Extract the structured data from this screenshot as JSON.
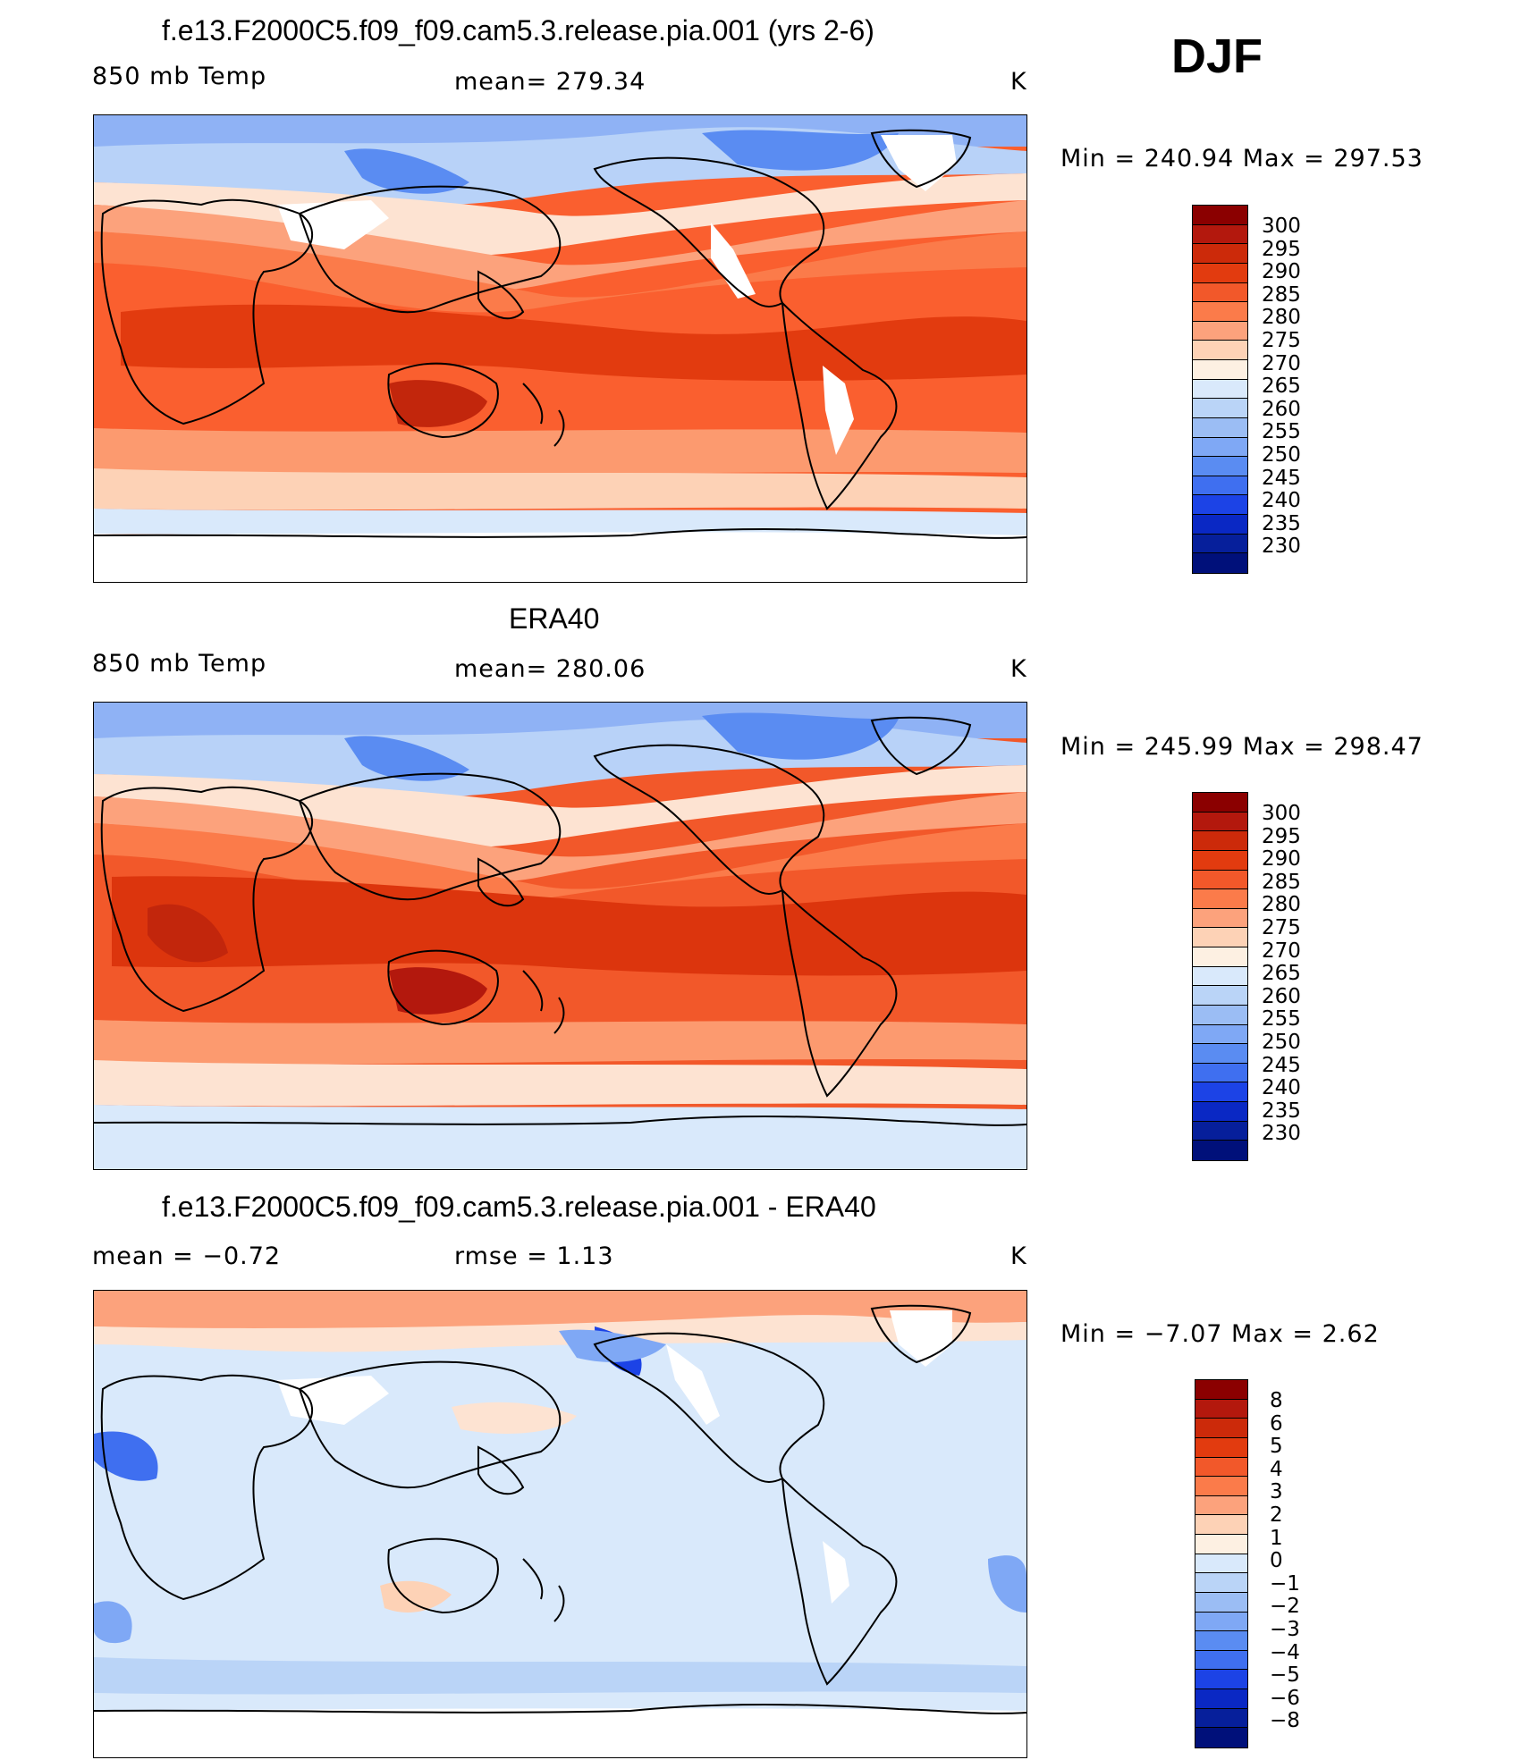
{
  "season": "DJF",
  "panels": [
    {
      "title": "f.e13.F2000C5.f09_f09.cam5.3.release.pia.001 (yrs 2-6)",
      "left_label": "850 mb Temp",
      "mid_label": "mean=  279.34",
      "units": "K",
      "minmax": "Min  =  240.94  Max  =  297.53",
      "kind": "model",
      "colorbar_labels": [
        "300",
        "295",
        "290",
        "285",
        "280",
        "275",
        "270",
        "265",
        "260",
        "255",
        "250",
        "245",
        "240",
        "235",
        "230"
      ],
      "colorbar_colors": [
        "#8b0000",
        "#b3180d",
        "#cc2a0a",
        "#e23b0f",
        "#f2582a",
        "#fb7b4a",
        "#fca27c",
        "#fdd2b6",
        "#fdf0e2",
        "#d9e9fb",
        "#bad4f7",
        "#9bbdf4",
        "#7fa8f5",
        "#5a8cf2",
        "#3f6ff0",
        "#1c43e6",
        "#0a28c4",
        "#061f9b",
        "#00107a"
      ]
    },
    {
      "title": "ERA40",
      "left_label": "850 mb Temp",
      "mid_label": "mean=  280.06",
      "units": "K",
      "minmax": "Min  =  245.99  Max  =  298.47",
      "kind": "obs",
      "colorbar_labels": [
        "300",
        "295",
        "290",
        "285",
        "280",
        "275",
        "270",
        "265",
        "260",
        "255",
        "250",
        "245",
        "240",
        "235",
        "230"
      ],
      "colorbar_colors": [
        "#8b0000",
        "#b3180d",
        "#cc2a0a",
        "#e23b0f",
        "#f2582a",
        "#fb7b4a",
        "#fca27c",
        "#fdd2b6",
        "#fdf0e2",
        "#d9e9fb",
        "#bad4f7",
        "#9bbdf4",
        "#7fa8f5",
        "#5a8cf2",
        "#3f6ff0",
        "#1c43e6",
        "#0a28c4",
        "#061f9b",
        "#00107a"
      ]
    },
    {
      "title": "f.e13.F2000C5.f09_f09.cam5.3.release.pia.001 - ERA40",
      "left_label": "mean =    −0.72",
      "mid_label": "rmse =      1.13",
      "units": "K",
      "minmax": "Min  =    −7.07  Max  =       2.62",
      "kind": "diff",
      "colorbar_labels": [
        "8",
        "6",
        "5",
        "4",
        "3",
        "2",
        "1",
        "0",
        "−1",
        "−2",
        "−3",
        "−4",
        "−5",
        "−6",
        "−8"
      ],
      "colorbar_colors": [
        "#8b0000",
        "#b3180d",
        "#cc2a0a",
        "#e23b0f",
        "#f2582a",
        "#fb7b4a",
        "#fca27c",
        "#fdd2b6",
        "#fdf0e2",
        "#d9e9fb",
        "#bad4f7",
        "#9bbdf4",
        "#7fa8f5",
        "#5a8cf2",
        "#3f6ff0",
        "#1c43e6",
        "#0a28c4",
        "#061f9b",
        "#00107a"
      ]
    }
  ]
}
